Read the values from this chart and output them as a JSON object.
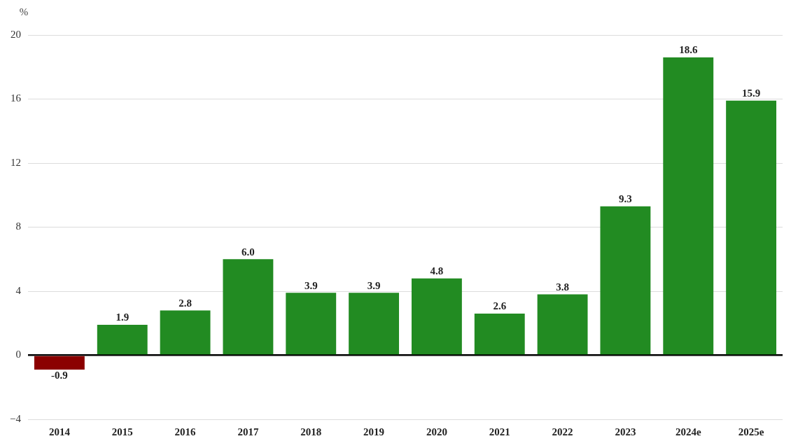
{
  "chart_data": {
    "type": "bar",
    "ylabel": "%",
    "categories": [
      "2014",
      "2015",
      "2016",
      "2017",
      "2018",
      "2019",
      "2020",
      "2021",
      "2022",
      "2023",
      "2024e",
      "2025e"
    ],
    "values": [
      -0.9,
      1.9,
      2.8,
      6.0,
      3.9,
      3.9,
      4.8,
      2.6,
      3.8,
      9.3,
      18.6,
      15.9
    ],
    "value_labels": [
      "-0.9",
      "1.9",
      "2.8",
      "6.0",
      "3.9",
      "3.9",
      "4.8",
      "2.6",
      "3.8",
      "9.3",
      "18.6",
      "15.9"
    ],
    "colors": [
      "#8b0000",
      "#228b22",
      "#228b22",
      "#228b22",
      "#228b22",
      "#228b22",
      "#228b22",
      "#228b22",
      "#228b22",
      "#228b22",
      "#228b22",
      "#228b22"
    ],
    "ylim": [
      -4,
      20
    ],
    "yticks": [
      {
        "value": -4,
        "label": "−4"
      },
      0,
      4,
      8,
      12,
      16,
      20
    ],
    "grid": "y",
    "legend": false
  }
}
